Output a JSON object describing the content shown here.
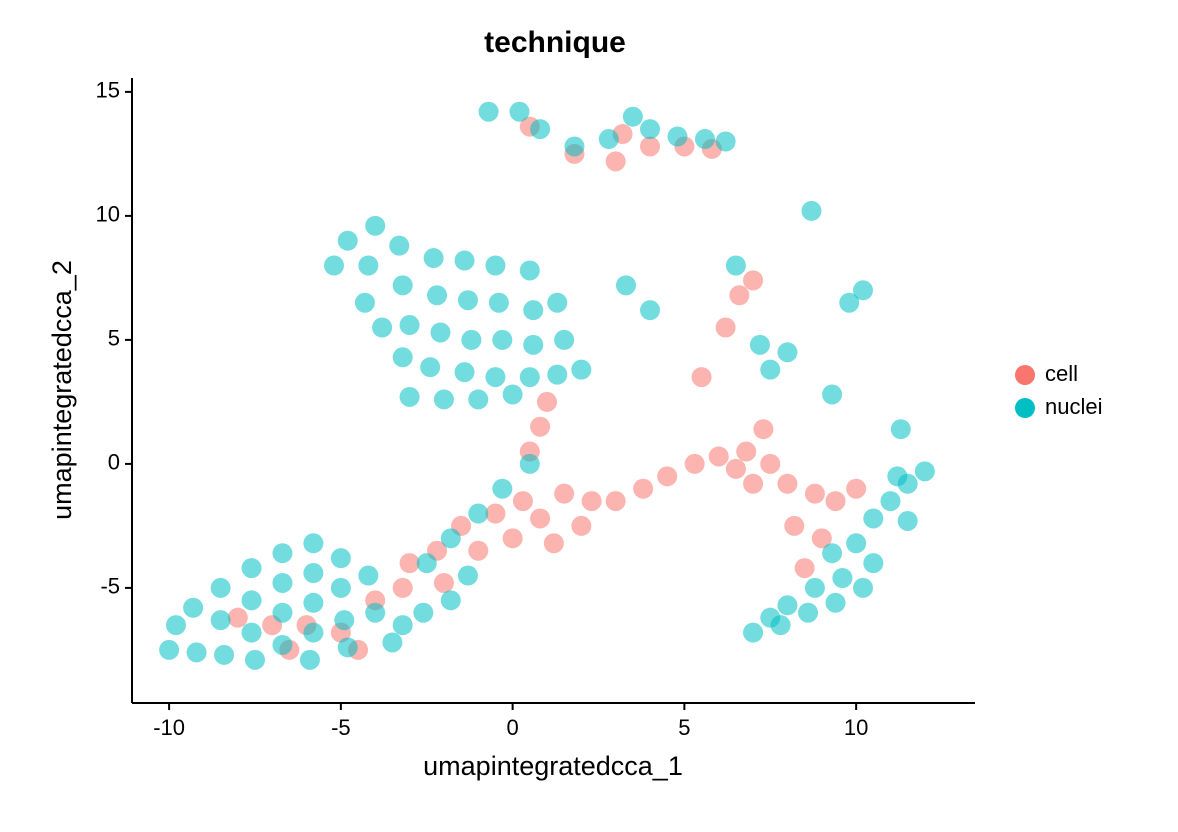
{
  "chart_data": {
    "type": "scatter",
    "title": "technique",
    "x_label": "umapintegratedcca_1",
    "y_label": "umapintegratedcca_2",
    "xlim": [
      -11.08,
      13.46
    ],
    "ylim": [
      -9.64,
      15.56
    ],
    "xticks": [
      -10,
      -5,
      0,
      5,
      10
    ],
    "yticks": [
      -5,
      0,
      5,
      10,
      15
    ],
    "grid": false,
    "legend": "right",
    "series": [
      {
        "name": "cell",
        "color": "#F8766D",
        "x": [
          -7,
          -6,
          -5,
          -4,
          -3.2,
          -3,
          -2.2,
          -2,
          -1.5,
          -1,
          -0.5,
          0,
          0.3,
          0.8,
          0.5,
          0.8,
          1,
          1.5,
          2.3,
          3,
          3.8,
          4.5,
          5.3,
          6,
          6.8,
          7.3,
          7.5,
          8,
          8.8,
          9.4,
          8.2,
          9,
          8.5,
          10,
          7,
          6.5,
          2,
          1.2,
          -6.5,
          -4.5,
          -8,
          0.5,
          1.8,
          3.2,
          4,
          5,
          5.8,
          3,
          6.2,
          6.6,
          7,
          5.5
        ],
        "values": [
          -6.5,
          -6.5,
          -6.8,
          -5.5,
          -5,
          -4,
          -3.5,
          -4.8,
          -2.5,
          -3.5,
          -2,
          -3,
          -1.5,
          -2.2,
          0.5,
          1.5,
          2.5,
          -1.2,
          -1.5,
          -1.5,
          -1,
          -0.5,
          0,
          0.3,
          0.5,
          1.4,
          0,
          -0.8,
          -1.2,
          -1.5,
          -2.5,
          -3,
          -4.2,
          -1,
          -0.8,
          -0.2,
          -2.5,
          -3.2,
          -7.5,
          -7.5,
          -6.2,
          13.6,
          12.5,
          13.3,
          12.8,
          12.8,
          12.7,
          12.2,
          5.5,
          6.8,
          7.4,
          3.5
        ]
      },
      {
        "name": "nuclei",
        "color": "#00BFC4",
        "x": [
          -10,
          -9.8,
          -9.3,
          -9.2,
          -8.5,
          -8.5,
          -8.4,
          -7.6,
          -7.6,
          -7.6,
          -7.5,
          -6.7,
          -6.7,
          -6.7,
          -6.7,
          -5.8,
          -5.8,
          -5.8,
          -5.8,
          -5.9,
          -5,
          -5,
          -4.9,
          -4.8,
          -4.2,
          -4,
          -3.2,
          -3.5,
          -2.5,
          -1.8,
          -1,
          -1.3,
          -0.3,
          0.5,
          -2.6,
          -1.8,
          -5.2,
          -4.8,
          -4,
          -4.2,
          -3.3,
          -3.2,
          -2.3,
          -2.2,
          -1.4,
          -1.3,
          -0.5,
          -0.4,
          0.5,
          0.6,
          1.3,
          -3,
          -2.1,
          -1.2,
          -0.3,
          0.6,
          1.5,
          2,
          -3.2,
          -2.4,
          -1.4,
          -0.5,
          0.5,
          1.3,
          -3,
          -2,
          -1,
          0,
          -4.3,
          -3.8,
          -0.7,
          0.2,
          0.8,
          1.8,
          3.5,
          4,
          4.8,
          5.6,
          6.2,
          2.8,
          6.5,
          8.7,
          10.2,
          9.8,
          7.2,
          8,
          7.5,
          9.3,
          3.3,
          4,
          11.3,
          7,
          7.8,
          8.6,
          9.4,
          8,
          8.8,
          9.6,
          10.2,
          9.3,
          10,
          10.5,
          11,
          11.5,
          12,
          11.5,
          11.2,
          10.5,
          7.5
        ],
        "values": [
          -7.5,
          -6.5,
          -5.8,
          -7.6,
          -5,
          -6.3,
          -7.7,
          -4.2,
          -5.5,
          -6.8,
          -7.9,
          -3.6,
          -4.8,
          -6,
          -7.3,
          -3.2,
          -4.4,
          -5.6,
          -6.8,
          -7.9,
          -3.8,
          -5,
          -6.3,
          -7.4,
          -4.5,
          -6,
          -6.5,
          -7.2,
          -4,
          -3,
          -2,
          -4.5,
          -1,
          0,
          -6,
          -5.5,
          8,
          9,
          9.6,
          8,
          8.8,
          7.2,
          8.3,
          6.8,
          8.2,
          6.6,
          8,
          6.5,
          7.8,
          6.2,
          6.5,
          5.6,
          5.3,
          5,
          5,
          4.8,
          5,
          3.8,
          4.3,
          3.9,
          3.7,
          3.5,
          3.5,
          3.6,
          2.7,
          2.6,
          2.6,
          2.8,
          6.5,
          5.5,
          14.2,
          14.2,
          13.5,
          12.8,
          14,
          13.5,
          13.2,
          13.1,
          13,
          13.1,
          8,
          10.2,
          7,
          6.5,
          4.8,
          4.5,
          3.8,
          2.8,
          7.2,
          6.2,
          1.4,
          -6.8,
          -6.5,
          -6,
          -5.6,
          -5.7,
          -5,
          -4.6,
          -5,
          -3.6,
          -3.2,
          -2.2,
          -1.5,
          -0.8,
          -0.3,
          -2.3,
          -0.5,
          -4,
          -6.2
        ]
      }
    ]
  }
}
